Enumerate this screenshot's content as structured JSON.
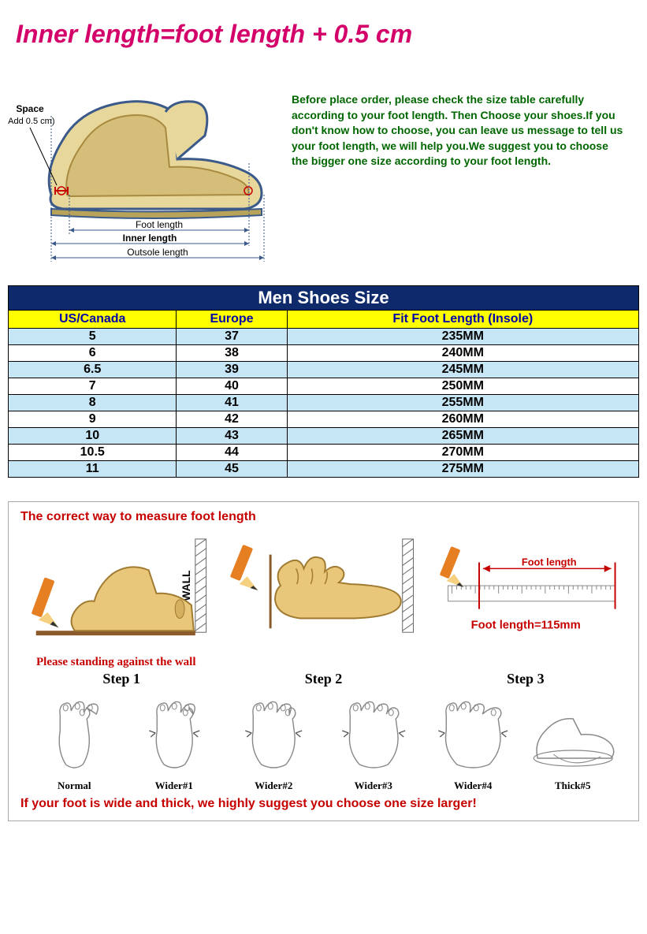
{
  "title": "Inner length=foot length + 0.5 cm",
  "diagram": {
    "space_label": "Space",
    "space_sub": "(Add 0.5 cm)",
    "foot_length_label": "Foot length",
    "inner_length_label": "Inner length",
    "outsole_label": "Outsole length",
    "colors": {
      "shoe_outline": "#3b5a8a",
      "shoe_fill": "#e8d79a",
      "sole": "#b8a35a",
      "foot": "#d4be7a",
      "dim_line": "#3b5a8a",
      "space_bracket": "#c60000"
    }
  },
  "advice_text": "Before place order, please check the size table carefully according to your foot length. Then Choose your shoes.If you don't know how to choose, you can leave us message to tell us your foot length, we will help you.We suggest you to choose the bigger one size according to your foot length.",
  "table": {
    "title": "Men Shoes Size",
    "columns": [
      "US/Canada",
      "Europe",
      "Fit Foot Length (Insole)"
    ],
    "rows": [
      [
        "5",
        "37",
        "235MM"
      ],
      [
        "6",
        "38",
        "240MM"
      ],
      [
        "6.5",
        "39",
        "245MM"
      ],
      [
        "7",
        "40",
        "250MM"
      ],
      [
        "8",
        "41",
        "255MM"
      ],
      [
        "9",
        "42",
        "260MM"
      ],
      [
        "10",
        "43",
        "265MM"
      ],
      [
        "10.5",
        "44",
        "270MM"
      ],
      [
        "11",
        "45",
        "275MM"
      ]
    ],
    "colors": {
      "title_bg": "#0f2a6b",
      "title_fg": "#ffffff",
      "head_bg": "#ffff00",
      "head_fg": "#0000aa",
      "alt_row_bg": "#c7e6f5",
      "border": "#000000"
    }
  },
  "measure": {
    "title": "The correct way to measure foot length",
    "standing": "Please standing against the wall",
    "steps": [
      "Step 1",
      "Step 2",
      "Step 3"
    ],
    "step3_label": "Foot length",
    "step3_equation": "Foot length=115mm",
    "wall_text": "WALL",
    "colors": {
      "foot_fill": "#e8c77a",
      "foot_stroke": "#a07a30",
      "pencil_body": "#e67e22",
      "pencil_tip": "#f5d080",
      "pencil_lead": "#333333",
      "wall_hatch": "#666666",
      "ground": "#8a5a2a",
      "arrow": "#c60000",
      "ruler": "#888888"
    }
  },
  "widths": {
    "labels": [
      "Normal",
      "Wider#1",
      "Wider#2",
      "Wider#3",
      "Wider#4",
      "Thick#5"
    ],
    "colors": {
      "stroke": "#888888"
    }
  },
  "bottom_note": "If your foot is wide and thick, we highly suggest you choose one size larger!"
}
